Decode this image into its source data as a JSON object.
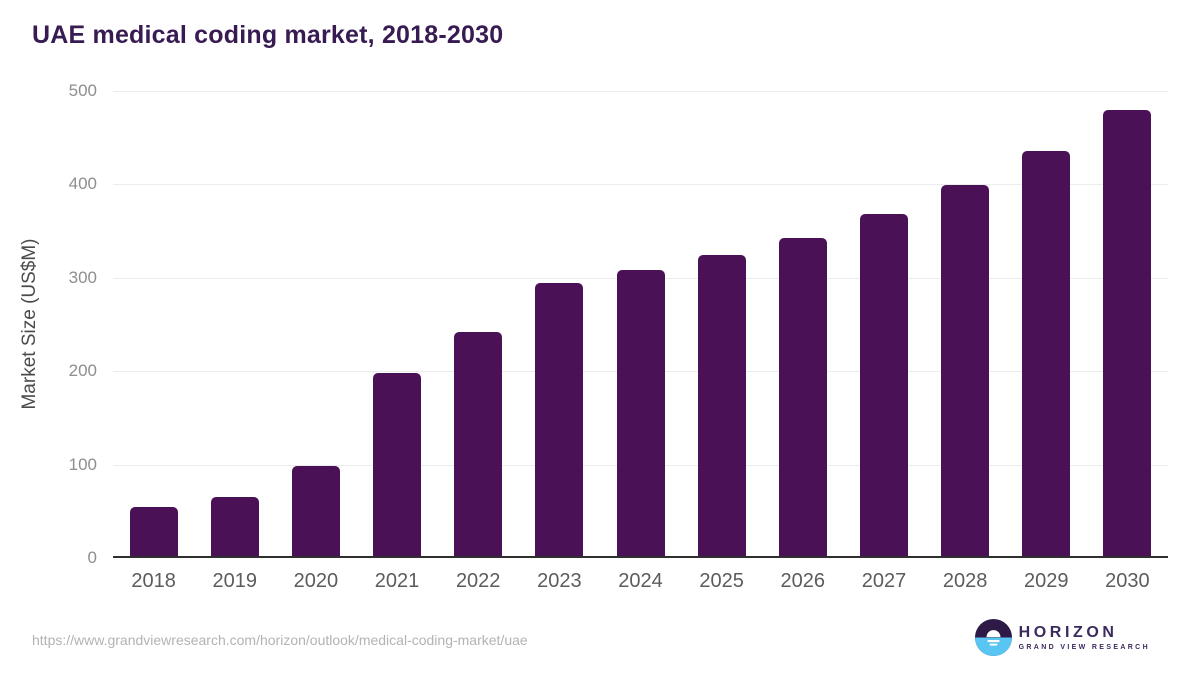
{
  "title": "UAE medical coding market, 2018-2030",
  "chart_data": {
    "type": "bar",
    "categories": [
      "2018",
      "2019",
      "2020",
      "2021",
      "2022",
      "2023",
      "2024",
      "2025",
      "2026",
      "2027",
      "2028",
      "2029",
      "2030"
    ],
    "values": [
      52,
      63,
      96,
      196,
      240,
      292,
      306,
      322,
      341,
      366,
      397,
      434,
      477
    ],
    "title": "UAE medical coding market, 2018-2030",
    "xlabel": "",
    "ylabel": "Market Size (US$M)",
    "ylim": [
      0,
      500
    ],
    "yticks": [
      0,
      100,
      200,
      300,
      400,
      500
    ],
    "grid": true,
    "legend": "none",
    "bar_color": "#4A1157"
  },
  "colors": {
    "title_text": "#371B52",
    "bar": "#4A1157",
    "axis_line": "#2F2F2F",
    "gridline": "#ECECEC",
    "y_tick_text": "#8E8E8E",
    "x_tick_text": "#5C5C5C",
    "y_axis_title_text": "#4B4B4D",
    "url_text": "#B3B3B3",
    "logo_purple": "#3B2A5E",
    "logo_icon_top": "#2E1A47",
    "logo_icon_bottom": "#58C5F2"
  },
  "footer": {
    "source_url": "https://www.grandviewresearch.com/horizon/outlook/medical-coding-market/uae",
    "logo": {
      "name": "HORIZON",
      "subtitle": "GRAND VIEW RESEARCH"
    }
  }
}
